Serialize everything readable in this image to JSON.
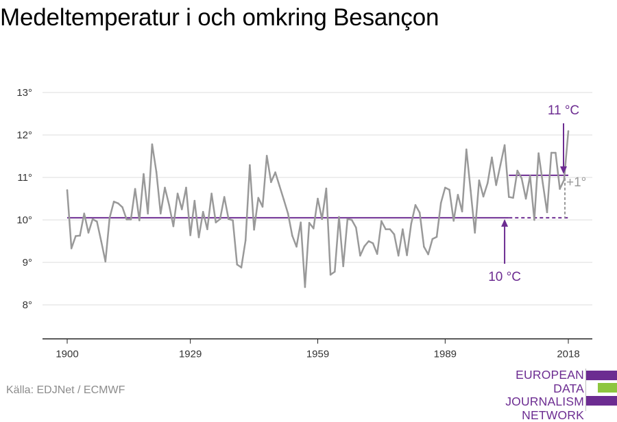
{
  "title": "Medeltemperatur i och omkring Besançon",
  "source": "Källa: EDJNet / ECMWF",
  "logo": {
    "lines": [
      "EUROPEAN",
      "DATA JOURNALISM",
      "NETWORK"
    ],
    "colors": {
      "purple": "#6c2c91",
      "green": "#8dc63f"
    }
  },
  "colors": {
    "series": "#999999",
    "reference": "#6c2c91",
    "grid": "#dddddd",
    "axis": "#222222",
    "delta": "#999999"
  },
  "chart_data": {
    "type": "line",
    "title": "Medeltemperatur i och omkring Besançon",
    "xlabel": "",
    "ylabel": "",
    "xlim": [
      1900,
      2018
    ],
    "ylim": [
      7.2,
      13
    ],
    "y_ticks": [
      8,
      9,
      10,
      11,
      12,
      13
    ],
    "y_tick_labels": [
      "8°",
      "9°",
      "10°",
      "11°",
      "12°",
      "13°"
    ],
    "x_ticks": [
      1900,
      1929,
      1959,
      1989,
      2018
    ],
    "x_tick_labels": [
      "1900",
      "1929",
      "1959",
      "1989",
      "2018"
    ],
    "grid": true,
    "series": [
      {
        "x": [
          1900,
          1901,
          1902,
          1903,
          1904,
          1905,
          1906,
          1907,
          1908,
          1909,
          1910,
          1911,
          1912,
          1913,
          1914,
          1915,
          1916,
          1917,
          1918,
          1919,
          1920,
          1921,
          1922,
          1923,
          1924,
          1925,
          1926,
          1927,
          1928,
          1929,
          1930,
          1931,
          1932,
          1933,
          1934,
          1935,
          1936,
          1937,
          1938,
          1939,
          1940,
          1941,
          1942,
          1943,
          1944,
          1945,
          1946,
          1947,
          1948,
          1949,
          1950,
          1951,
          1952,
          1953,
          1954,
          1955,
          1956,
          1957,
          1958,
          1959,
          1960,
          1961,
          1962,
          1963,
          1964,
          1965,
          1966,
          1967,
          1968,
          1969,
          1970,
          1971,
          1972,
          1973,
          1974,
          1975,
          1976,
          1977,
          1978,
          1979,
          1980,
          1981,
          1982,
          1983,
          1984,
          1985,
          1986,
          1987,
          1988,
          1989,
          1990,
          1991,
          1992,
          1993,
          1994,
          1995,
          1996,
          1997,
          1998,
          1999,
          2000,
          2001,
          2002,
          2003,
          2004,
          2005,
          2006,
          2007,
          2008,
          2009,
          2010,
          2011,
          2012,
          2013,
          2014,
          2015,
          2016,
          2017,
          2018
        ],
        "values": [
          10.7,
          9.33,
          9.62,
          9.63,
          10.15,
          9.7,
          10.02,
          9.96,
          9.5,
          9.02,
          10.05,
          10.43,
          10.39,
          10.3,
          10.01,
          10.01,
          10.73,
          9.99,
          11.08,
          10.15,
          11.78,
          11.13,
          10.15,
          10.76,
          10.35,
          9.85,
          10.62,
          10.25,
          10.76,
          9.64,
          10.45,
          9.59,
          10.19,
          9.78,
          10.62,
          9.94,
          10.02,
          10.54,
          10.02,
          9.99,
          8.95,
          8.88,
          9.52,
          11.29,
          9.77,
          10.52,
          10.31,
          11.51,
          10.89,
          11.12,
          10.8,
          10.48,
          10.15,
          9.63,
          9.37,
          9.94,
          8.42,
          9.93,
          9.8,
          10.5,
          10.02,
          10.74,
          8.71,
          8.78,
          10.07,
          8.91,
          10.02,
          10.0,
          9.82,
          9.16,
          9.38,
          9.5,
          9.45,
          9.2,
          9.97,
          9.78,
          9.78,
          9.66,
          9.16,
          9.78,
          9.17,
          9.91,
          10.35,
          10.17,
          9.37,
          9.19,
          9.55,
          9.6,
          10.4,
          10.76,
          10.71,
          9.98,
          10.59,
          10.2,
          11.66,
          10.69,
          9.7,
          10.93,
          10.55,
          10.87,
          11.47,
          10.82,
          11.29,
          11.76,
          10.54,
          10.52,
          11.16,
          10.98,
          10.5,
          11.04,
          10.0,
          11.57,
          10.86,
          10.18,
          11.58,
          11.58,
          10.73,
          10.94,
          12.09
        ]
      }
    ],
    "reference_lines": [
      {
        "x_start": 1900,
        "x_end": 2018,
        "y": 10.05,
        "label": "10 °C",
        "dashed_from": 2004
      },
      {
        "x_start": 2004,
        "x_end": 2018,
        "y": 11.05,
        "label": "11 °C"
      }
    ],
    "annotations": [
      {
        "text": "10 °C",
        "x": 2003,
        "y": 10.05
      },
      {
        "text": "11 °C",
        "x": 2018,
        "y": 11.05
      },
      {
        "text": "+1°",
        "x": 2018,
        "y": 10.55
      }
    ]
  }
}
